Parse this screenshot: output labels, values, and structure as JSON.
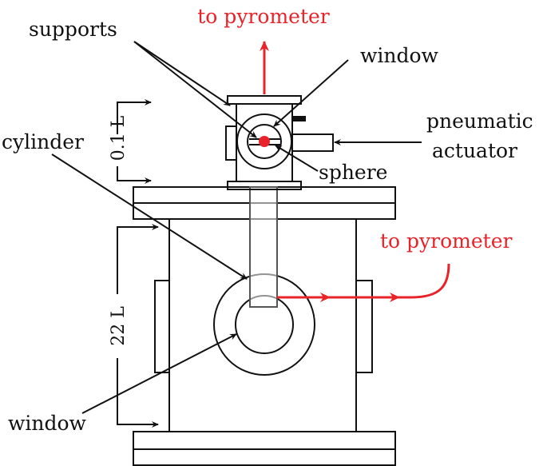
{
  "labels": {
    "to_pyrometer_top": "to pyrometer",
    "supports": "supports",
    "window_top": "window",
    "pneumatic": "pneumatic",
    "actuator": "actuator",
    "sphere": "sphere",
    "cylinder": "cylinder",
    "dim_small": "0.1 L",
    "dim_large": "22 L",
    "to_pyrometer_right": "to pyrometer",
    "window_bottom": "window"
  },
  "colors": {
    "ink": "#111111",
    "accent": "#e8232a",
    "background": "#ffffff"
  }
}
